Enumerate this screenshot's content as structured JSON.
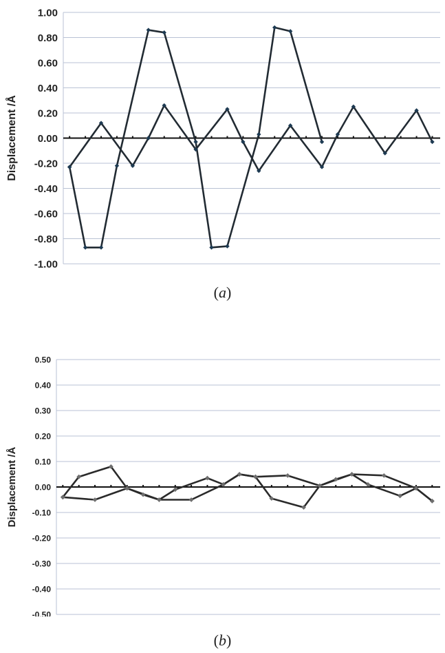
{
  "colors": {
    "a_line": "#222b33",
    "a_marker": "#1d3a52",
    "b_line": "#2a2a2a",
    "b_marker": "#6e6e6e"
  },
  "captions": {
    "a": "a",
    "b": "b"
  },
  "chart_data": [
    {
      "id": "a",
      "type": "line",
      "title": "",
      "xlabel": "",
      "ylabel": "Displacement /Å",
      "ylim": [
        -1.0,
        1.0
      ],
      "yticks": [
        "1.00",
        "0.80",
        "0.60",
        "0.40",
        "0.20",
        "0.00",
        "-0.20",
        "-0.40",
        "-0.60",
        "-0.80",
        "-1.00"
      ],
      "grid": true,
      "legend": "none",
      "x": [
        1,
        2,
        3,
        4,
        5,
        6,
        7,
        8,
        9,
        10,
        11,
        12,
        13,
        14,
        15,
        16,
        17,
        18,
        19,
        20,
        21,
        22,
        23
      ],
      "series": [
        {
          "values": [
            -0.23,
            -0.87,
            -0.87,
            -0.22,
            0.86,
            0.84,
            -0.03,
            -0.87,
            -0.86,
            0.03,
            0.88,
            0.85,
            -0.03
          ],
          "x": [
            1,
            2,
            3,
            4,
            6,
            7,
            9,
            10,
            11,
            13,
            14,
            15,
            17
          ]
        },
        {
          "values": [
            -0.23,
            0.12,
            -0.22,
            0.0,
            0.26,
            -0.09,
            0.23,
            -0.03,
            -0.26,
            0.1,
            -0.23,
            0.03,
            0.25,
            -0.12,
            0.22,
            -0.03
          ],
          "x": [
            1,
            3,
            5,
            6,
            7,
            9,
            11,
            12,
            13,
            15,
            17,
            18,
            19,
            21,
            23,
            24
          ]
        }
      ]
    },
    {
      "id": "b",
      "type": "line",
      "title": "",
      "xlabel": "",
      "ylabel": "Displacement /Å",
      "ylim": [
        -0.5,
        0.5
      ],
      "yticks": [
        "0.50",
        "0.40",
        "0.30",
        "0.20",
        "0.10",
        "0.00",
        "-0.10",
        "-0.20",
        "-0.30",
        "-0.40",
        "-0.50"
      ],
      "grid": true,
      "legend": "none",
      "series": [
        {
          "values": [
            -0.04,
            0.04,
            0.08,
            -0.005,
            -0.03,
            -0.05,
            -0.01,
            0.035,
            0.01,
            0.05,
            0.04,
            -0.045,
            -0.08,
            0.005,
            0.03,
            0.05,
            0.01,
            -0.035,
            -0.005,
            -0.055
          ],
          "x": [
            1,
            2,
            4,
            5,
            6,
            7,
            8,
            10,
            11,
            12,
            13,
            14,
            16,
            17,
            18,
            19,
            20,
            22,
            23,
            24
          ]
        },
        {
          "values": [
            -0.04,
            -0.05,
            -0.005,
            -0.05,
            -0.05,
            0.01,
            0.05,
            0.04,
            0.045,
            0.005,
            0.05,
            0.045,
            -0.005,
            -0.055
          ],
          "x": [
            1,
            3,
            5,
            7,
            9,
            11,
            12,
            13,
            15,
            17,
            19,
            21,
            23,
            24
          ]
        }
      ]
    }
  ]
}
